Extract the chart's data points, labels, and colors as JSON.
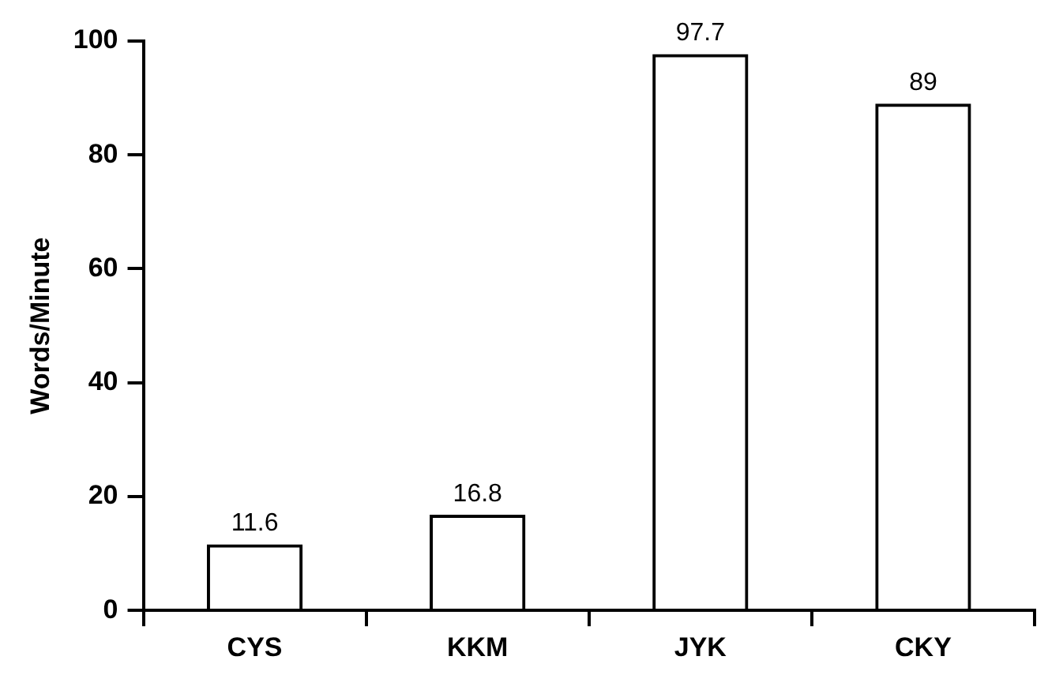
{
  "chart_data": {
    "type": "bar",
    "ylabel": "Words/Minute",
    "categories": [
      "CYS",
      "KKM",
      "JYK",
      "CKY"
    ],
    "values": [
      11.6,
      16.8,
      97.7,
      89
    ],
    "color": "#000000",
    "ylim": [
      0,
      100
    ],
    "yticks": [
      0,
      20,
      40,
      60,
      80,
      100
    ],
    "grid": false,
    "legend": false,
    "data_labels": true
  }
}
